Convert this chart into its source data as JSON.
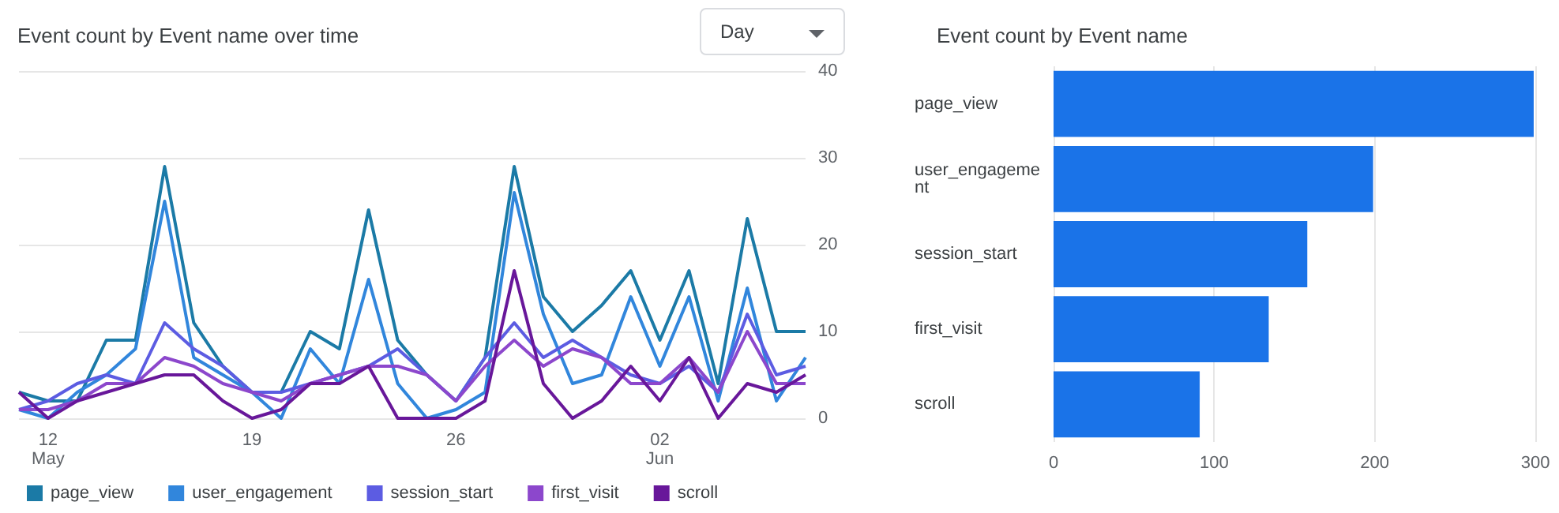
{
  "chart_data": [
    {
      "type": "line",
      "title": "Event count by Event name over time",
      "annotations": [
        "Day"
      ],
      "x": [
        "--05-11",
        "--05-12",
        "--05-13",
        "--05-14",
        "--05-15",
        "--05-16",
        "--05-17",
        "--05-18",
        "--05-19",
        "--05-20",
        "--05-21",
        "--05-22",
        "--05-23",
        "--05-24",
        "--05-25",
        "--05-26",
        "--05-27",
        "--05-28",
        "--05-29",
        "--05-30",
        "--05-31",
        "--06-01",
        "--06-02",
        "--06-03",
        "--06-04",
        "--06-05",
        "--06-06",
        "--06-07"
      ],
      "series": [
        {
          "name": "page_view",
          "color": "#1b7aa6",
          "values": [
            3,
            2,
            2,
            9,
            9,
            29,
            11,
            6,
            3,
            3,
            10,
            8,
            24,
            9,
            5,
            2,
            7,
            29,
            14,
            10,
            13,
            17,
            9,
            17,
            4,
            23,
            10,
            10
          ]
        },
        {
          "name": "user_engagement",
          "color": "#3186dc",
          "values": [
            1,
            0,
            3,
            5,
            8,
            25,
            7,
            5,
            3,
            0,
            8,
            4,
            16,
            4,
            0,
            1,
            3,
            26,
            12,
            4,
            5,
            14,
            6,
            14,
            2,
            15,
            2,
            7
          ]
        },
        {
          "name": "session_start",
          "color": "#5c5ce2",
          "values": [
            1,
            2,
            4,
            5,
            4,
            11,
            8,
            6,
            3,
            3,
            4,
            5,
            6,
            8,
            5,
            2,
            7,
            11,
            7,
            9,
            7,
            5,
            4,
            6,
            3,
            12,
            5,
            6
          ]
        },
        {
          "name": "first_visit",
          "color": "#8c47cc",
          "values": [
            1,
            1,
            2,
            4,
            4,
            7,
            6,
            4,
            3,
            2,
            4,
            5,
            6,
            6,
            5,
            2,
            6,
            9,
            6,
            8,
            7,
            4,
            4,
            7,
            3,
            10,
            4,
            4
          ]
        },
        {
          "name": "scroll",
          "color": "#68179a",
          "values": [
            3,
            0,
            2,
            3,
            4,
            5,
            5,
            2,
            0,
            1,
            4,
            4,
            6,
            0,
            0,
            0,
            2,
            17,
            4,
            0,
            2,
            6,
            2,
            7,
            0,
            4,
            3,
            5
          ]
        }
      ],
      "xlim": [
        "--05-11",
        "--06-07"
      ],
      "xticks": [
        {
          "value": "--05-12",
          "label": "12\nMay"
        },
        {
          "value": "--05-19",
          "label": "19"
        },
        {
          "value": "--05-26",
          "label": "26"
        },
        {
          "value": "--06-02",
          "label": "02\nJun"
        }
      ],
      "ylim": [
        0,
        40
      ],
      "yticks": [
        0,
        10,
        20,
        30,
        40
      ],
      "grid": "y",
      "legend": "bottom"
    },
    {
      "type": "bar",
      "title": "Event count by Event name",
      "orientation": "horizontal",
      "categories": [
        "page_view",
        "user_engagement",
        "session_start",
        "first_visit",
        "scroll"
      ],
      "values": [
        299,
        199,
        158,
        134,
        91
      ],
      "color": "#1a73e8",
      "xlim": [
        0,
        300
      ],
      "xticks": [
        0,
        100,
        200,
        300
      ],
      "grid": "x"
    }
  ]
}
